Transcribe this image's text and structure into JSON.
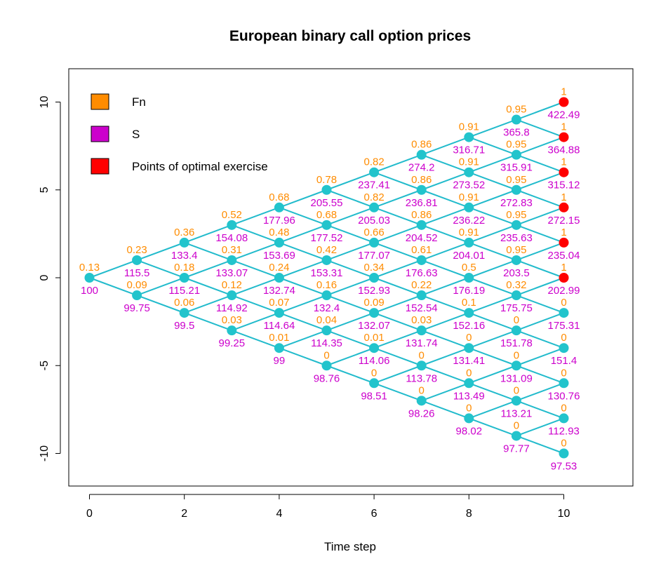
{
  "chart_data": {
    "type": "scatter",
    "title": "European binary call option prices",
    "xlabel": "Time step",
    "ylabel": "",
    "xlim": [
      -0.5,
      11.5
    ],
    "ylim": [
      -12,
      12
    ],
    "xticks": [
      0,
      2,
      4,
      6,
      8,
      10
    ],
    "yticks": [
      -10,
      -5,
      0,
      5,
      10
    ],
    "legend": {
      "position": "top-left",
      "entries": [
        {
          "label": "Fn",
          "color": "#ff8c00"
        },
        {
          "label": "S",
          "color": "#cc00cc"
        },
        {
          "label": "Points of optimal exercise",
          "color": "#ff0000"
        }
      ]
    },
    "colors": {
      "edges": "#22bbcc",
      "nodes": "#22c4cc",
      "exercise": "#ff0000",
      "fn": "#ff8c00",
      "s": "#cc00cc"
    },
    "fn_values": [
      [
        0.13
      ],
      [
        0.23,
        0.09
      ],
      [
        0.36,
        0.18,
        0.06
      ],
      [
        0.52,
        0.31,
        0.12,
        0.03
      ],
      [
        0.68,
        0.48,
        0.24,
        0.07,
        0.01
      ],
      [
        0.78,
        0.68,
        0.42,
        0.16,
        0.04,
        0
      ],
      [
        0.82,
        0.82,
        0.66,
        0.34,
        0.09,
        0.01,
        0
      ],
      [
        0.86,
        0.86,
        0.86,
        0.61,
        0.22,
        0.03,
        0,
        0
      ],
      [
        0.91,
        0.91,
        0.91,
        0.91,
        0.5,
        0.1,
        0,
        0,
        0
      ],
      [
        0.95,
        0.95,
        0.95,
        0.95,
        0.95,
        0.32,
        0,
        0,
        0,
        0
      ],
      [
        1,
        1,
        1,
        1,
        1,
        1,
        0,
        0,
        0,
        0,
        0
      ]
    ],
    "s_values": [
      [
        100
      ],
      [
        115.5,
        99.75
      ],
      [
        133.4,
        115.21,
        99.5
      ],
      [
        154.08,
        133.07,
        114.92,
        99.25
      ],
      [
        177.96,
        153.69,
        132.74,
        114.64,
        99
      ],
      [
        205.55,
        177.52,
        153.31,
        132.4,
        114.35,
        98.76
      ],
      [
        237.41,
        205.03,
        177.07,
        152.93,
        132.07,
        114.06,
        98.51
      ],
      [
        274.2,
        236.81,
        204.52,
        176.63,
        152.54,
        131.74,
        113.78,
        98.26
      ],
      [
        316.71,
        273.52,
        236.22,
        204.01,
        176.19,
        152.16,
        131.41,
        113.49,
        98.02
      ],
      [
        365.8,
        315.91,
        272.83,
        235.63,
        203.5,
        175.75,
        151.78,
        131.09,
        113.21,
        97.77
      ],
      [
        422.49,
        364.88,
        315.12,
        272.15,
        235.04,
        202.99,
        175.31,
        151.4,
        130.76,
        112.93,
        97.53
      ]
    ],
    "optimal_exercise": [
      {
        "step": 10,
        "position": 10
      },
      {
        "step": 10,
        "position": 8
      },
      {
        "step": 10,
        "position": 6
      },
      {
        "step": 10,
        "position": 4
      },
      {
        "step": 10,
        "position": 2
      },
      {
        "step": 10,
        "position": 0
      }
    ]
  }
}
